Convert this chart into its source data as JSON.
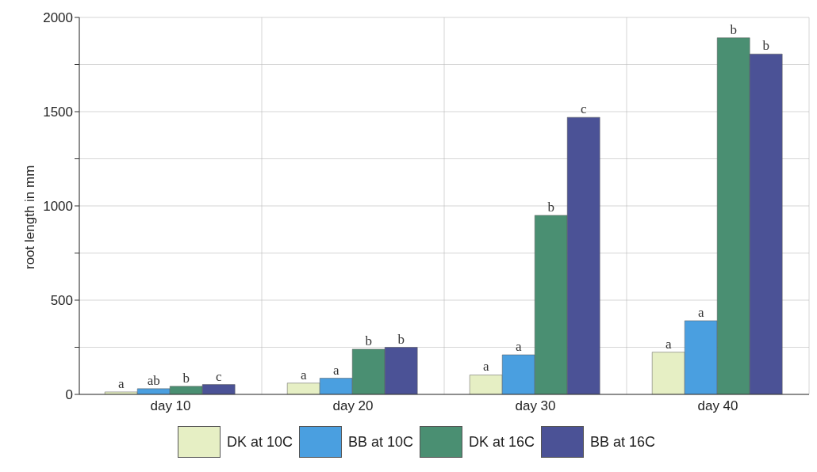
{
  "chart_data": {
    "type": "bar",
    "ylabel": "root length in mm",
    "categories": [
      "day 10",
      "day 20",
      "day 30",
      "day 40"
    ],
    "series": [
      {
        "name": "DK at 10C",
        "color": "#e6efc4",
        "values": [
          13,
          60,
          103,
          224
        ],
        "value_labels": [
          "a",
          "a",
          "a",
          "a"
        ]
      },
      {
        "name": "BB at 10C",
        "color": "#4a9fe0",
        "values": [
          30,
          86,
          210,
          391
        ],
        "value_labels": [
          "ab",
          "a",
          "a",
          "a"
        ]
      },
      {
        "name": "DK at 16C",
        "color": "#4a8f72",
        "values": [
          43,
          240,
          950,
          1892
        ],
        "value_labels": [
          "b",
          "b",
          "b",
          "b"
        ]
      },
      {
        "name": "BB at 16C",
        "color": "#4b5296",
        "values": [
          52,
          250,
          1470,
          1806
        ],
        "value_labels": [
          "c",
          "b",
          "c",
          "b"
        ]
      }
    ],
    "ylim": [
      0,
      2000
    ],
    "yticks": [
      0,
      {
        "value": 250,
        "label": null
      },
      500,
      {
        "value": 750,
        "label": null
      },
      1000,
      {
        "value": 1250,
        "label": null
      },
      1500,
      {
        "value": 1750,
        "label": null
      },
      2000
    ],
    "grid": true,
    "legend": "bottom"
  }
}
